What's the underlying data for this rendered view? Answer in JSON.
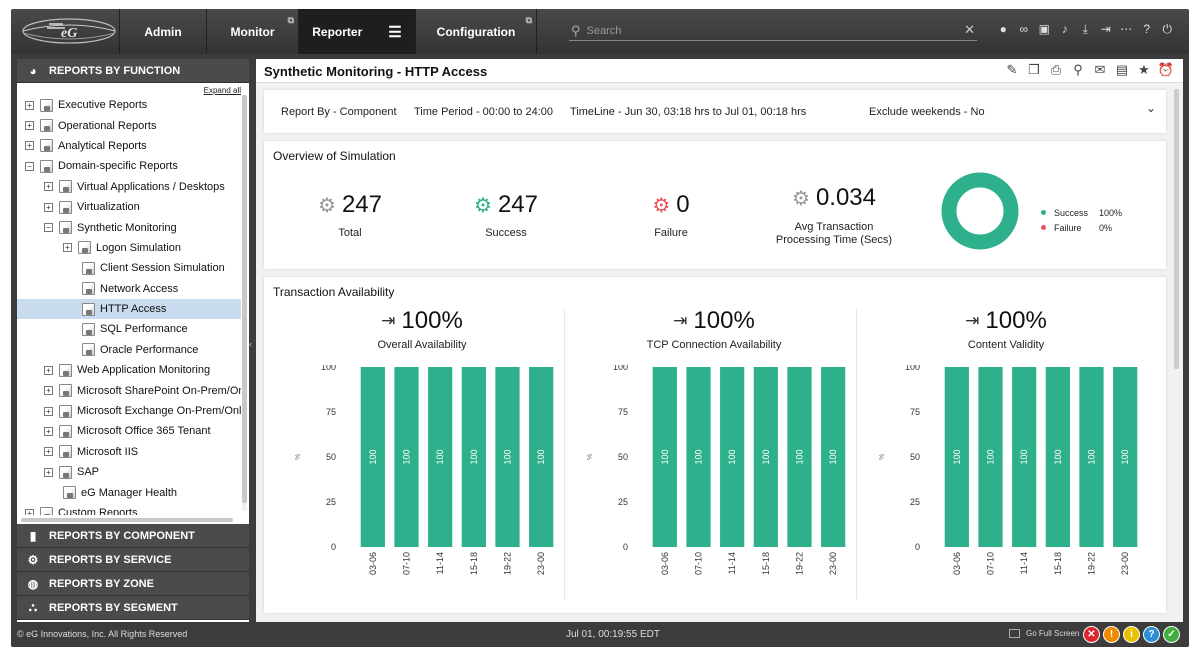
{
  "nav": {
    "tabs": [
      {
        "label": "Admin"
      },
      {
        "label": "Monitor"
      },
      {
        "label": "Reporter"
      },
      {
        "label": "Configuration"
      }
    ],
    "search_placeholder": "Search",
    "toolbar_icons": [
      "user-icon",
      "link-icon",
      "image-icon",
      "bell-icon",
      "download-icon",
      "logout-icon",
      "more-icon",
      "help-icon",
      "power-icon"
    ]
  },
  "sidebar": {
    "header": "REPORTS BY FUNCTION",
    "expand_all": "Expand all",
    "tree": [
      {
        "label": "Executive Reports",
        "toggle": "+"
      },
      {
        "label": "Operational Reports",
        "toggle": "+"
      },
      {
        "label": "Analytical Reports",
        "toggle": "+"
      },
      {
        "label": "Domain-specific Reports",
        "toggle": "−"
      },
      {
        "label": "Virtual Applications / Desktops",
        "toggle": "+"
      },
      {
        "label": "Virtualization",
        "toggle": "+"
      },
      {
        "label": "Synthetic Monitoring",
        "toggle": "−"
      },
      {
        "label": "Logon Simulation",
        "toggle": "+"
      },
      {
        "label": "Client Session Simulation",
        "toggle": ""
      },
      {
        "label": "Network Access",
        "toggle": ""
      },
      {
        "label": "HTTP Access",
        "toggle": "",
        "selected": true
      },
      {
        "label": "SQL Performance",
        "toggle": ""
      },
      {
        "label": "Oracle Performance",
        "toggle": ""
      },
      {
        "label": "Web Application Monitoring",
        "toggle": "+"
      },
      {
        "label": "Microsoft SharePoint On-Prem/Onl",
        "toggle": "+"
      },
      {
        "label": "Microsoft Exchange On-Prem/Onlir",
        "toggle": "+"
      },
      {
        "label": "Microsoft Office 365 Tenant",
        "toggle": "+"
      },
      {
        "label": "Microsoft IIS",
        "toggle": "+"
      },
      {
        "label": "SAP",
        "toggle": "+"
      },
      {
        "label": "eG Manager Health",
        "toggle": ""
      },
      {
        "label": "Custom Reports",
        "toggle": "+"
      }
    ],
    "sections": [
      {
        "label": "REPORTS BY COMPONENT"
      },
      {
        "label": "REPORTS BY SERVICE"
      },
      {
        "label": "REPORTS BY ZONE"
      },
      {
        "label": "REPORTS BY SEGMENT"
      }
    ]
  },
  "content": {
    "title": "Synthetic Monitoring - HTTP Access",
    "filters": {
      "report_by": "Report By - Component",
      "time_period": "Time Period - 00:00 to 24:00",
      "timeline": "TimeLine - Jun 30, 03:18 hrs to Jul 01,  00:18 hrs",
      "exclude_weekends": "Exclude weekends - No"
    },
    "overview": {
      "title": "Overview of Simulation",
      "total": {
        "value": "247",
        "label": "Total"
      },
      "success": {
        "value": "247",
        "label": "Success"
      },
      "failure": {
        "value": "0",
        "label": "Failure"
      },
      "avg": {
        "value": "0.034",
        "label_line1": "Avg Transaction",
        "label_line2": "Processing Time (Secs)"
      },
      "legend": [
        {
          "label": "Success",
          "value": "100%",
          "color": "#2fb08c"
        },
        {
          "label": "Failure",
          "value": "0%",
          "color": "#e8545a"
        }
      ]
    },
    "availability": {
      "title": "Transaction Availability",
      "panels": [
        {
          "percent": "100%",
          "label": "Overall Availability"
        },
        {
          "percent": "100%",
          "label": "TCP Connection Availability"
        },
        {
          "percent": "100%",
          "label": "Content Validity"
        }
      ]
    }
  },
  "chart_data": [
    {
      "type": "bar",
      "title": "Overall Availability",
      "ylabel": "%",
      "categories": [
        "03-06",
        "07-10",
        "11-14",
        "15-18",
        "19-22",
        "23-00"
      ],
      "values": [
        100,
        100,
        100,
        100,
        100,
        100
      ],
      "ylim": [
        0,
        100
      ],
      "yticks": [
        0,
        25,
        50,
        75,
        100
      ],
      "color": "#2fb08c"
    },
    {
      "type": "bar",
      "title": "TCP Connection Availability",
      "ylabel": "%",
      "categories": [
        "03-06",
        "07-10",
        "11-14",
        "15-18",
        "19-22",
        "23-00"
      ],
      "values": [
        100,
        100,
        100,
        100,
        100,
        100
      ],
      "ylim": [
        0,
        100
      ],
      "yticks": [
        0,
        25,
        50,
        75,
        100
      ],
      "color": "#2fb08c"
    },
    {
      "type": "bar",
      "title": "Content Validity",
      "ylabel": "%",
      "categories": [
        "03-06",
        "07-10",
        "11-14",
        "15-18",
        "19-22",
        "23-00"
      ],
      "values": [
        100,
        100,
        100,
        100,
        100,
        100
      ],
      "ylim": [
        0,
        100
      ],
      "yticks": [
        0,
        25,
        50,
        75,
        100
      ],
      "color": "#2fb08c"
    }
  ],
  "footer": {
    "copyright": "© eG Innovations, Inc. All Rights Reserved",
    "clock": "Jul 01, 00:19:55 EDT",
    "fullscreen": "Go Full Screen",
    "status_icons": [
      {
        "name": "critical-alert-icon",
        "glyph": "✕",
        "color": "#d9262e"
      },
      {
        "name": "major-alert-icon",
        "glyph": "!",
        "color": "#f08a00"
      },
      {
        "name": "minor-alert-icon",
        "glyph": "i",
        "color": "#e8c200"
      },
      {
        "name": "help-status-icon",
        "glyph": "?",
        "color": "#2d8fd5"
      },
      {
        "name": "ok-status-icon",
        "glyph": "✓",
        "color": "#3fae3f"
      }
    ]
  }
}
